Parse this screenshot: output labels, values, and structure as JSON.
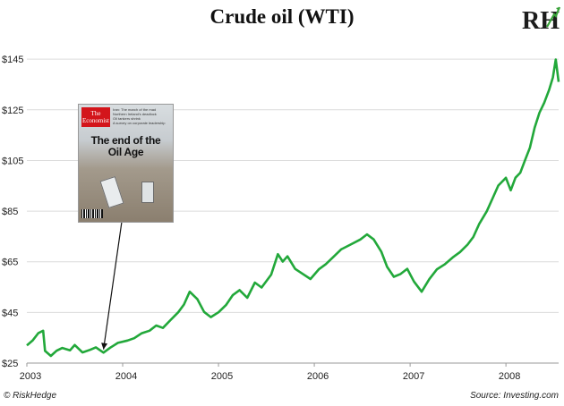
{
  "chart_data": {
    "type": "line",
    "title": "Crude oil (WTI)",
    "xlabel": "",
    "ylabel": "",
    "x_ticks": [
      "2003",
      "2004",
      "2005",
      "2006",
      "2007",
      "2008"
    ],
    "y_ticks": [
      "$25",
      "$45",
      "$65",
      "$85",
      "$105",
      "$125",
      "$145"
    ],
    "xlim": [
      2003.0,
      2008.55
    ],
    "ylim": [
      25,
      150
    ],
    "grid": true,
    "series": [
      {
        "color": "#22a83a",
        "x": [
          2003.0,
          2003.06,
          2003.12,
          2003.17,
          2003.19,
          2003.25,
          2003.31,
          2003.37,
          2003.45,
          2003.5,
          2003.58,
          2003.66,
          2003.72,
          2003.8,
          2003.87,
          2003.95,
          2004.05,
          2004.12,
          2004.2,
          2004.28,
          2004.35,
          2004.42,
          2004.5,
          2004.58,
          2004.64,
          2004.7,
          2004.78,
          2004.85,
          2004.92,
          2005.0,
          2005.08,
          2005.15,
          2005.22,
          2005.3,
          2005.38,
          2005.45,
          2005.55,
          2005.62,
          2005.67,
          2005.72,
          2005.8,
          2005.88,
          2005.96,
          2006.05,
          2006.12,
          2006.2,
          2006.28,
          2006.38,
          2006.48,
          2006.55,
          2006.62,
          2006.7,
          2006.76,
          2006.83,
          2006.9,
          2006.97,
          2007.04,
          2007.12,
          2007.2,
          2007.28,
          2007.36,
          2007.45,
          2007.52,
          2007.6,
          2007.66,
          2007.72,
          2007.8,
          2007.86,
          2007.92,
          2008.0,
          2008.05,
          2008.1,
          2008.15,
          2008.2,
          2008.25,
          2008.3,
          2008.35,
          2008.4,
          2008.45,
          2008.49,
          2008.52,
          2008.55
        ],
        "y": [
          32,
          34,
          37,
          38,
          30,
          28,
          30,
          31,
          30,
          32,
          29,
          30,
          31,
          29,
          31,
          33,
          34,
          35,
          37,
          38,
          40,
          39,
          42,
          45,
          48,
          53,
          50,
          45,
          43,
          45,
          48,
          52,
          54,
          51,
          57,
          55,
          60,
          68,
          65,
          67,
          62,
          60,
          58,
          62,
          64,
          67,
          70,
          72,
          74,
          76,
          74,
          69,
          63,
          59,
          60,
          62,
          57,
          53,
          58,
          62,
          64,
          67,
          69,
          72,
          75,
          80,
          85,
          90,
          95,
          98,
          93,
          98,
          100,
          105,
          110,
          118,
          124,
          128,
          133,
          138,
          145,
          136
        ]
      }
    ],
    "annotation_image": {
      "x": 2003.8,
      "y": 29,
      "masthead": [
        "The",
        "Economist"
      ],
      "cover_lines": [
        "Iran: The march of the mad",
        "Northern Ireland's deadlock",
        "Oil tankers shrink",
        "A survey on corporate leadership"
      ],
      "headline": [
        "The end of the",
        "Oil Age"
      ]
    }
  },
  "logo_text": "RH",
  "footer": {
    "copyright": "© RiskHedge",
    "source": "Source: Investing.com"
  }
}
